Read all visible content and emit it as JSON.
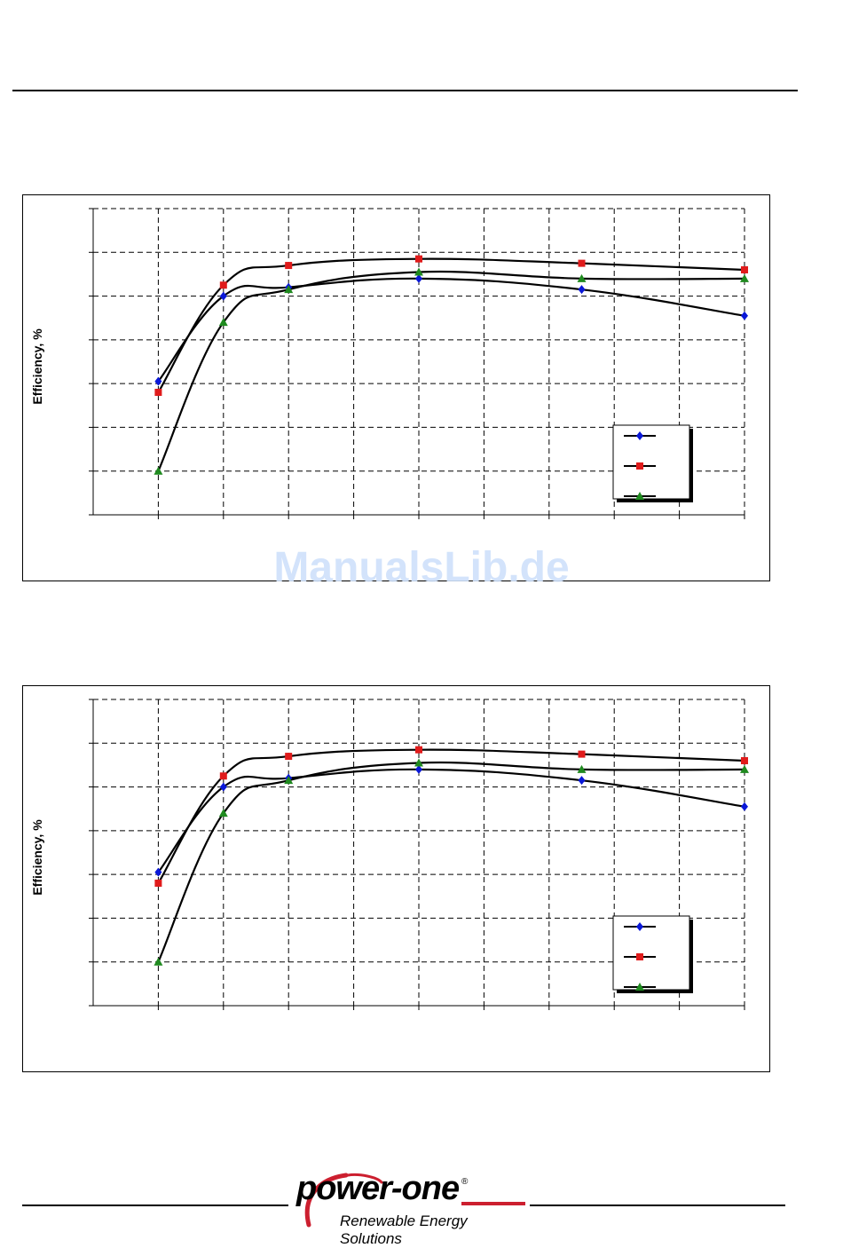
{
  "watermark": {
    "text": "ManualsLib.de"
  },
  "logo": {
    "wordmark": "power-one",
    "registered": "®",
    "tagline": "Renewable Energy Solutions",
    "accent_color": "#cc1f2f"
  },
  "colors": {
    "grid": "#000000",
    "curve": "#000000"
  },
  "chart_data": [
    {
      "type": "line",
      "title": "",
      "xlabel": "",
      "ylabel": "Efficiency, %",
      "x": [
        1,
        2,
        3,
        5,
        7.5,
        10
      ],
      "xlim": [
        0,
        10
      ],
      "ylim": [
        0,
        7
      ],
      "grid": true,
      "legend": "bottom-right",
      "series": [
        {
          "marker": "diamond",
          "color": "#0a18d8",
          "values": [
            3.05,
            5.0,
            5.2,
            5.4,
            5.15,
            4.55
          ]
        },
        {
          "marker": "square",
          "color": "#e01b1b",
          "values": [
            2.8,
            5.25,
            5.7,
            5.85,
            5.75,
            5.6
          ]
        },
        {
          "marker": "triangle",
          "color": "#1f8a1f",
          "values": [
            1.0,
            4.4,
            5.15,
            5.55,
            5.4,
            5.4
          ]
        }
      ]
    },
    {
      "type": "line",
      "title": "",
      "xlabel": "",
      "ylabel": "Efficiency, %",
      "x": [
        1,
        2,
        3,
        5,
        7.5,
        10
      ],
      "xlim": [
        0,
        10
      ],
      "ylim": [
        0,
        7
      ],
      "grid": true,
      "legend": "bottom-right",
      "series": [
        {
          "marker": "diamond",
          "color": "#0a18d8",
          "values": [
            3.05,
            5.0,
            5.2,
            5.4,
            5.15,
            4.55
          ]
        },
        {
          "marker": "square",
          "color": "#e01b1b",
          "values": [
            2.8,
            5.25,
            5.7,
            5.85,
            5.75,
            5.6
          ]
        },
        {
          "marker": "triangle",
          "color": "#1f8a1f",
          "values": [
            1.0,
            4.4,
            5.15,
            5.55,
            5.4,
            5.4
          ]
        }
      ]
    }
  ]
}
